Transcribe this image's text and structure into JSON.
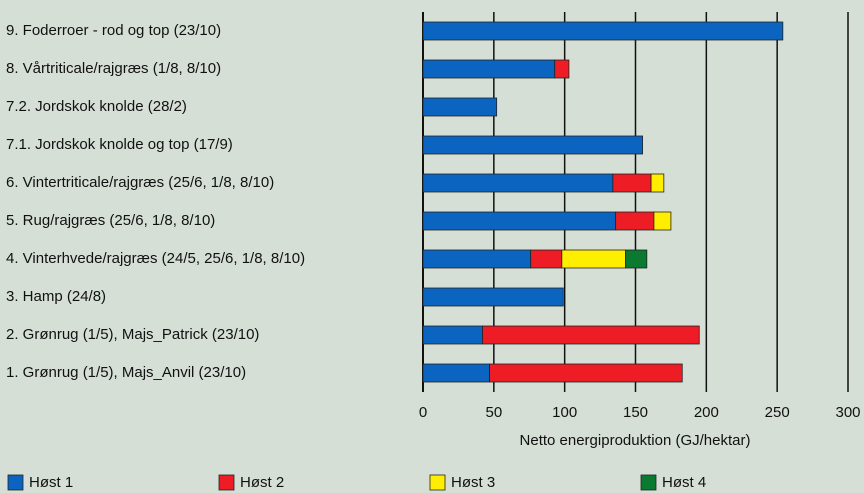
{
  "chart_data": {
    "type": "stacked_barh",
    "xlabel": "Netto energiproduktion (GJ/hektar)",
    "categories": [
      "9. Foderroer - rod og top (23/10)",
      "8. Vårtriticale/rajgræs (1/8, 8/10)",
      "7.2. Jordskok knolde (28/2)",
      "7.1. Jordskok knolde og top (17/9)",
      "6. Vintertriticale/rajgræs (25/6, 1/8, 8/10)",
      "5. Rug/rajgræs (25/6, 1/8, 8/10)",
      "4. Vinterhvede/rajgræs (24/5, 25/6, 1/8, 8/10)",
      "3. Hamp (24/8)",
      "2. Grønrug (1/5), Majs_Patrick (23/10)",
      "1. Grønrug (1/5), Majs_Anvil (23/10)"
    ],
    "series": [
      {
        "name": "Høst 1",
        "color": "#0a64c0",
        "values": [
          254,
          93,
          52,
          155,
          134,
          136,
          76,
          99,
          42,
          47
        ]
      },
      {
        "name": "Høst 2",
        "color": "#ee1c25",
        "values": [
          null,
          10,
          null,
          null,
          27,
          27,
          22,
          null,
          153,
          136
        ]
      },
      {
        "name": "Høst 3",
        "color": "#ffee00",
        "values": [
          null,
          null,
          null,
          null,
          9,
          12,
          45,
          null,
          null,
          null
        ]
      },
      {
        "name": "Høst 4",
        "color": "#0a7a30",
        "values": [
          null,
          null,
          null,
          null,
          null,
          null,
          15,
          null,
          null,
          null
        ]
      }
    ],
    "xlim": [
      0,
      300
    ],
    "xticks": [
      0,
      50,
      100,
      150,
      200,
      250,
      300
    ],
    "grid": true
  }
}
